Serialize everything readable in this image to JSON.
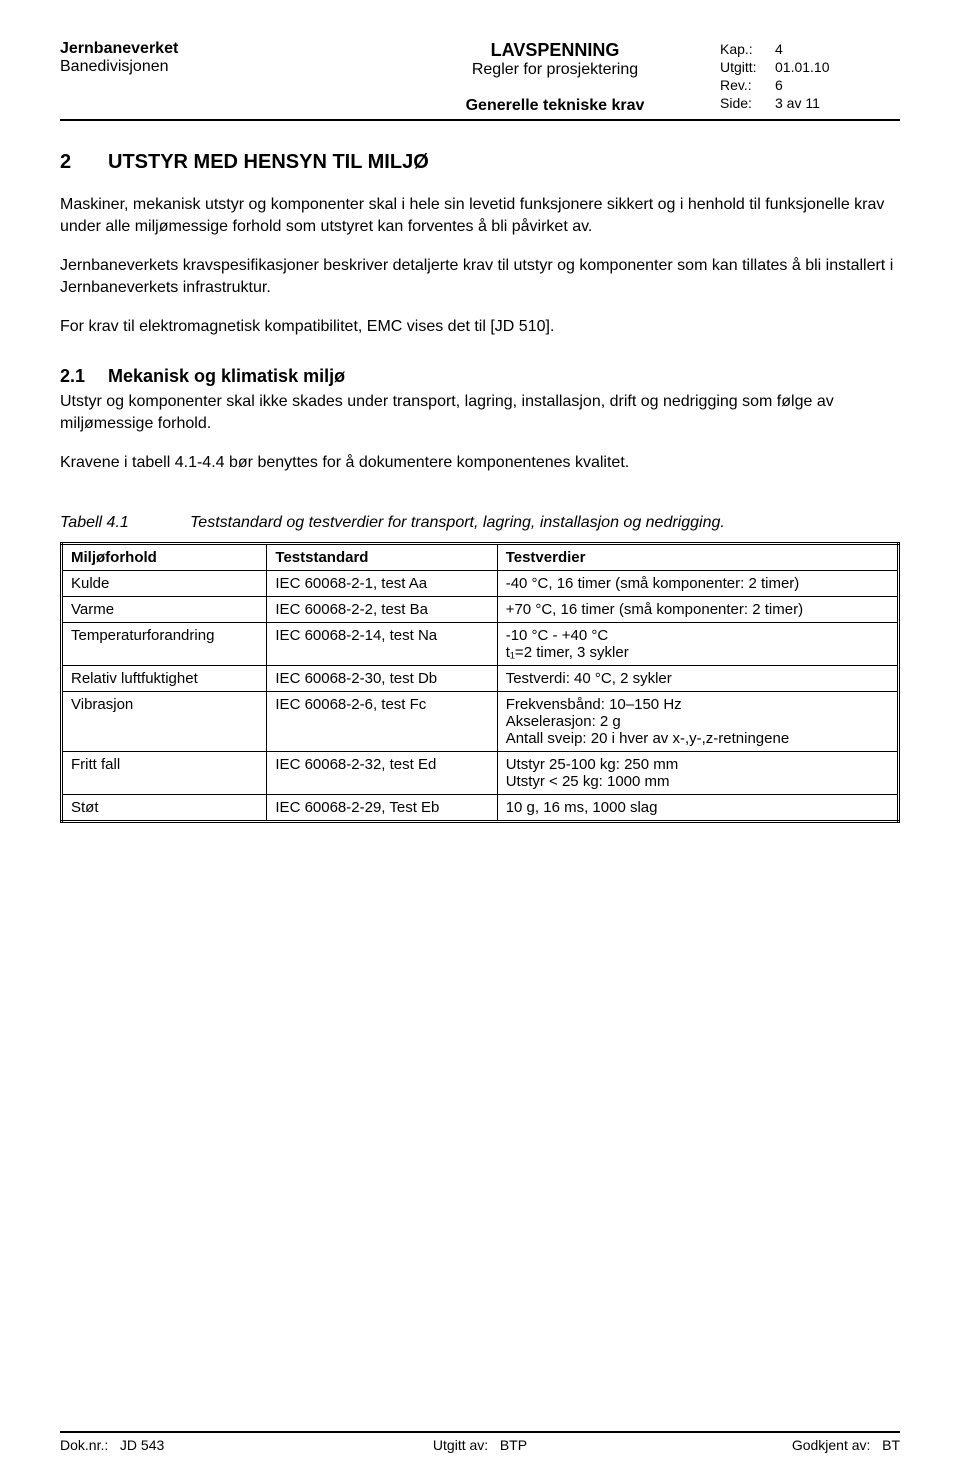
{
  "header": {
    "left": {
      "line1": "Jernbaneverket",
      "line2": "Banedivisjonen"
    },
    "center": {
      "line1": "LAVSPENNING",
      "line2": "Regler for prosjektering",
      "line3": "Generelle tekniske krav"
    },
    "right": {
      "kap_label": "Kap.:",
      "kap_value": "4",
      "utgitt_label": "Utgitt:",
      "utgitt_value": "01.01.10",
      "rev_label": "Rev.:",
      "rev_value": "6",
      "side_label": "Side:",
      "side_value": "3 av 11"
    }
  },
  "section2": {
    "num": "2",
    "title": "UTSTYR MED HENSYN TIL MILJØ",
    "p1": "Maskiner, mekanisk utstyr og komponenter skal i hele sin levetid funksjonere sikkert og i henhold til funksjonelle krav under alle miljømessige forhold som utstyret kan forventes å bli påvirket av.",
    "p2": "Jernbaneverkets kravspesifikasjoner beskriver detaljerte krav til utstyr og komponenter som kan tillates å bli installert i Jernbaneverkets infrastruktur.",
    "p3": "For krav til elektromagnetisk kompatibilitet, EMC vises det til [JD 510]."
  },
  "section21": {
    "num": "2.1",
    "title": "Mekanisk og klimatisk miljø",
    "p1": "Utstyr og komponenter skal ikke skades under transport, lagring, installasjon, drift og nedrigging som følge av miljømessige forhold.",
    "p2": "Kravene i tabell 4.1-4.4 bør benyttes for å dokumentere komponentenes kvalitet."
  },
  "table41": {
    "caption_label": "Tabell 4.1",
    "caption_text": "Teststandard og testverdier for transport, lagring, installasjon og nedrigging.",
    "columns": [
      "Miljøforhold",
      "Teststandard",
      "Testverdier"
    ],
    "rows": [
      {
        "c0": "Kulde",
        "c1": "IEC 60068-2-1, test Aa",
        "c2": "-40 °C, 16 timer (små komponenter: 2 timer)"
      },
      {
        "c0": "Varme",
        "c1": "IEC 60068-2-2, test Ba",
        "c2": "+70 °C, 16 timer (små komponenter: 2 timer)"
      },
      {
        "c0": "Temperaturforandring",
        "c1": "IEC 60068-2-14, test Na",
        "c2": "-10 °C - +40 °C\nt₁=2 timer, 3 sykler"
      },
      {
        "c0": "Relativ luftfuktighet",
        "c1": "IEC 60068-2-30, test Db",
        "c2": "Testverdi: 40 °C, 2 sykler"
      },
      {
        "c0": "Vibrasjon",
        "c1": "IEC 60068-2-6, test Fc",
        "c2": "Frekvensbånd:  10–150 Hz\nAkselerasjon:  2 g\nAntall sveip:   20 i hver av x-,y-,z-retningene"
      },
      {
        "c0": "Fritt fall",
        "c1": "IEC 60068-2-32, test Ed",
        "c2": "Utstyr 25-100 kg:       250 mm\nUtstyr < 25 kg:          1000 mm"
      },
      {
        "c0": "Støt",
        "c1": "IEC 60068-2-29, Test Eb",
        "c2": "10 g, 16 ms, 1000 slag"
      }
    ]
  },
  "footer": {
    "left_label": "Dok.nr.:",
    "left_value": "JD 543",
    "center_label": "Utgitt av:",
    "center_value": "BTP",
    "right_label": "Godkjent av:",
    "right_value": "BT"
  }
}
